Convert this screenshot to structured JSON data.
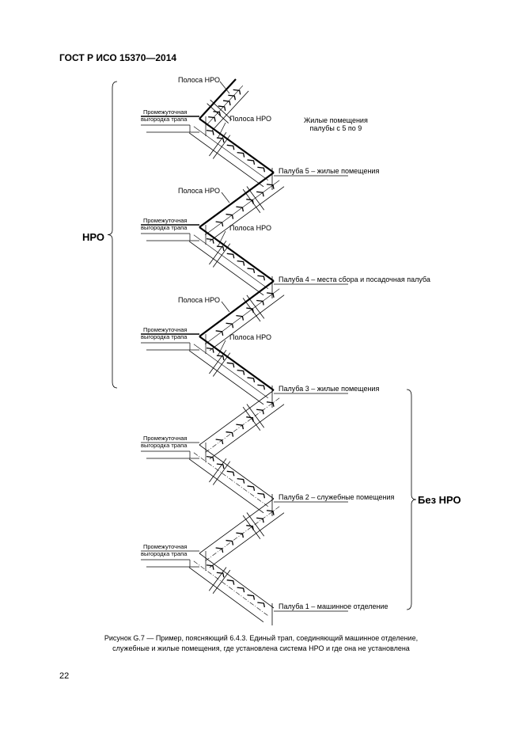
{
  "header": {
    "title": "ГОСТ Р ИСО 15370—2014"
  },
  "figure": {
    "lpl_strip_label": "Полоса НРО",
    "intermediate_label_1": "Промежуточная",
    "intermediate_label_2": "выгородка трапа",
    "accommodation_note_1": "Жилые помещения",
    "accommodation_note_2": "палубы с 5 по 9",
    "decks": [
      "Палуба 5 – жилые помещения",
      "Палуба 4 – места сбора и посадочная палуба",
      "Палуба 3 – жилые помещения",
      "Палуба 2 – служебные помещения",
      "Палуба 1 – машинное отделение"
    ],
    "with_lpl": "НРО",
    "without_lpl": "Без НРО"
  },
  "caption": {
    "line1": "Рисунок G.7 — Пример, поясняющий 6.4.3. Единый трап, соединяющий машинное отделение,",
    "line2": "служебные и жилые помещения, где установлена система НРО и где она не установлена"
  },
  "page_number": "22"
}
